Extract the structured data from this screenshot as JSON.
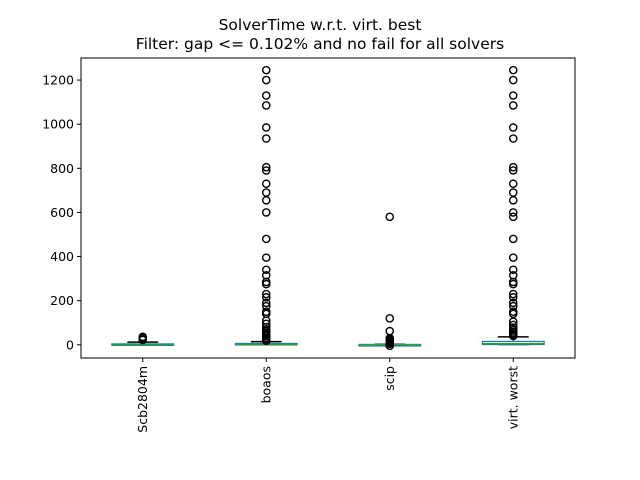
{
  "chart_data": {
    "type": "box",
    "title": "SolverTime w.r.t. virt. best",
    "subtitle": "Filter: gap <= 0.102% and no fail for all solvers",
    "xlabel": "",
    "ylabel": "",
    "ylim": [
      -60,
      1300
    ],
    "yticks": [
      0,
      200,
      400,
      600,
      800,
      1000,
      1200
    ],
    "grid": false,
    "categories": [
      "Scb2804m",
      "boaos",
      "scip",
      "virt. worst"
    ],
    "boxes": [
      {
        "name": "Scb2804m",
        "q1": 0.5,
        "median": 1.5,
        "q3": 4,
        "whisker_low": 0,
        "whisker_high": 12,
        "outliers": [
          22,
          25,
          28,
          30,
          33,
          36
        ]
      },
      {
        "name": "boaos",
        "q1": 0.5,
        "median": 2,
        "q3": 6,
        "whisker_low": 0,
        "whisker_high": 14,
        "outliers": [
          18,
          24,
          30,
          38,
          45,
          55,
          62,
          70,
          80,
          95,
          110,
          140,
          150,
          175,
          190,
          215,
          230,
          275,
          285,
          315,
          340,
          395,
          480,
          600,
          655,
          690,
          730,
          790,
          805,
          935,
          985,
          1085,
          1130,
          1200,
          1245
        ]
      },
      {
        "name": "scip",
        "q1": 0.2,
        "median": 0.5,
        "q3": 1.2,
        "whisker_low": 0,
        "whisker_high": 2.5,
        "outliers": [
          -5,
          4,
          6,
          9,
          13,
          17,
          22,
          26,
          30,
          62,
          120,
          580
        ]
      },
      {
        "name": "virt. worst",
        "q1": 1,
        "median": 5,
        "q3": 15,
        "whisker_low": 0,
        "whisker_high": 36,
        "outliers": [
          40,
          45,
          52,
          60,
          68,
          78,
          90,
          105,
          140,
          150,
          175,
          190,
          215,
          230,
          275,
          285,
          315,
          340,
          395,
          480,
          580,
          600,
          655,
          690,
          730,
          790,
          805,
          935,
          985,
          1085,
          1130,
          1200,
          1245
        ]
      }
    ],
    "colors": {
      "box": "#1f77b4",
      "median": "#2ca02c",
      "whisker": "#000000",
      "outlier": "#000000"
    }
  }
}
